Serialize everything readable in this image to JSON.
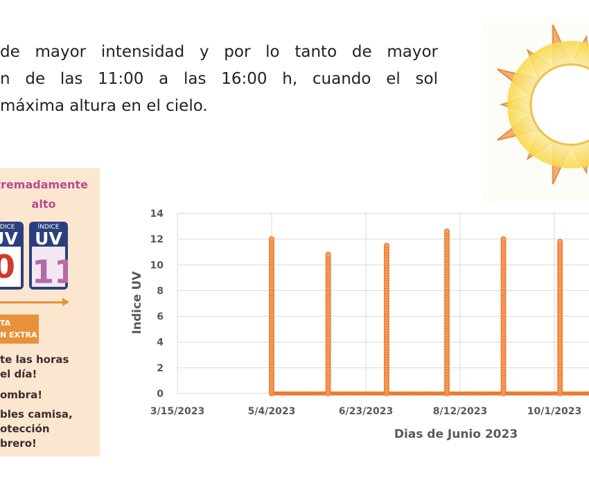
{
  "intro": {
    "line1": "de mayor intensidad y por lo tanto de mayor",
    "line2": "n de las 11:00 a las 16:00 h, cuando el sol",
    "line3": "máxima altura en el cielo."
  },
  "uv_panel": {
    "title_line1": "xtremadamente",
    "title_line2": "alto",
    "box_label": "ÍNDICE",
    "box_uv": "UV",
    "box1_value": "0",
    "box2_value": "11",
    "box2_plus": "+",
    "badge_line1": "TA",
    "badge_line2": "N EXTRA",
    "tips": [
      "te las horas",
      "el día!",
      "ombra!",
      "bles camisa,",
      "otección",
      "brero!"
    ],
    "colors": {
      "title": "#b94a8f",
      "box": "#2b3f7e",
      "accent": "#e8913a",
      "background": "#fbe6cf"
    }
  },
  "chart_data": {
    "type": "scatter",
    "xlabel": "Dias de Junio 2023",
    "ylabel": "Indice UV",
    "ylim": [
      0,
      14
    ],
    "yticks": [
      0,
      2,
      4,
      6,
      8,
      10,
      12,
      14
    ],
    "xlim": [
      "2023-03-15",
      "2023-10-30"
    ],
    "xticks": [
      "3/15/2023",
      "5/4/2023",
      "6/23/2023",
      "8/12/2023",
      "10/1/2023"
    ],
    "grid": true,
    "marker_color": "#ed7d31",
    "series": [
      {
        "points_by_date": [
          {
            "x": "2023-05-04",
            "max": 12.0
          },
          {
            "x": "2023-06-03",
            "max": 10.8
          },
          {
            "x": "2023-07-04",
            "max": 11.5
          },
          {
            "x": "2023-08-05",
            "max": 12.6
          },
          {
            "x": "2023-09-04",
            "max": 12.0
          },
          {
            "x": "2023-10-04",
            "max": 11.8
          }
        ]
      }
    ]
  }
}
